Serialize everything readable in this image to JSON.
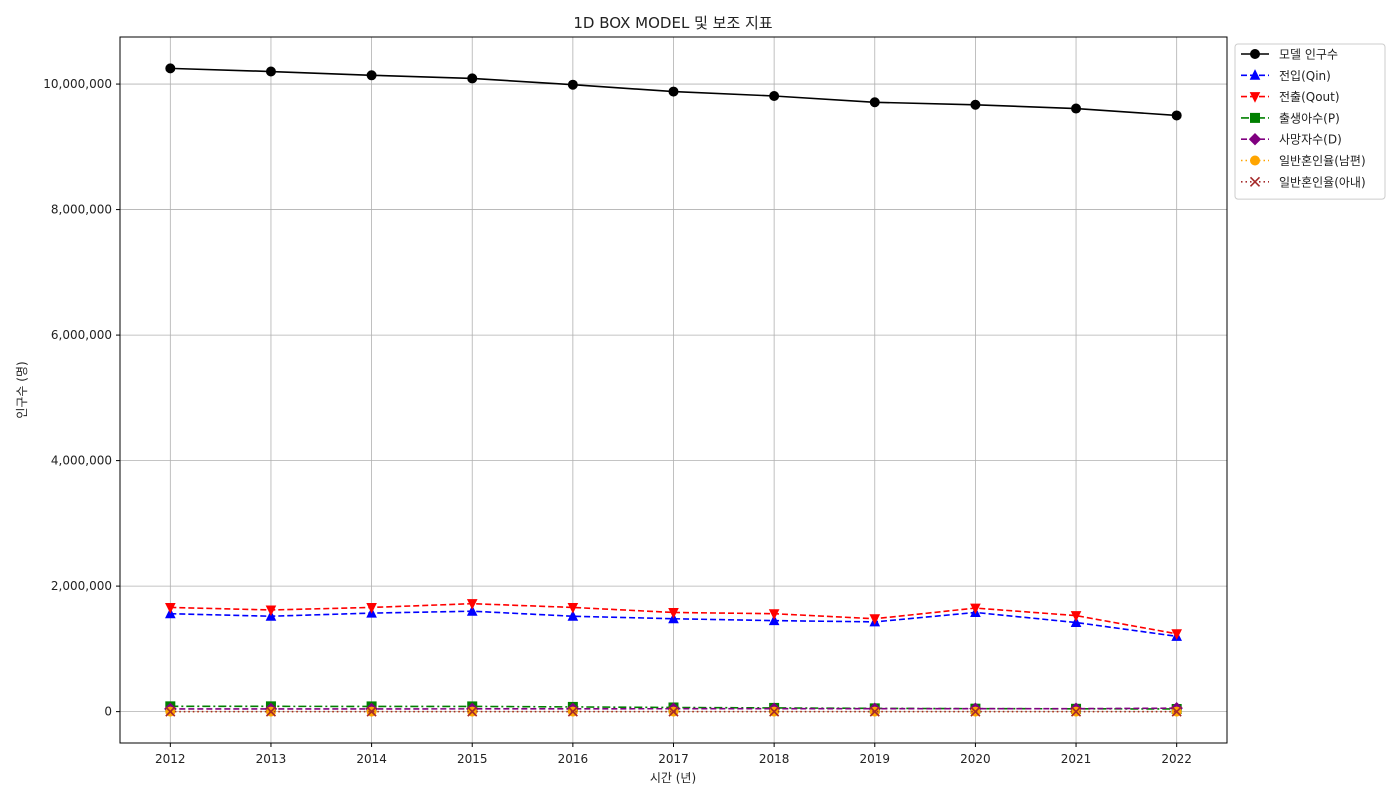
{
  "chart_data": {
    "type": "line",
    "title": "1D BOX MODEL 및 보조 지표",
    "xlabel": "시간 (년)",
    "ylabel": "인구수 (명)",
    "x": [
      2012,
      2013,
      2014,
      2015,
      2016,
      2017,
      2018,
      2019,
      2020,
      2021,
      2022
    ],
    "ylim": [
      -500000,
      10750000
    ],
    "yticks": [
      0,
      2000000,
      4000000,
      6000000,
      8000000,
      10000000
    ],
    "ytick_labels": [
      "0",
      "2,000,000",
      "4,000,000",
      "6,000,000",
      "8,000,000",
      "10,000,000"
    ],
    "grid": true,
    "legend_position": "outside-top-right",
    "series": [
      {
        "name": "모델 인구수",
        "color": "#000000",
        "dash": "solid",
        "marker": "circle",
        "values": [
          10250000,
          10200000,
          10140000,
          10090000,
          9990000,
          9880000,
          9810000,
          9710000,
          9670000,
          9610000,
          9500000
        ]
      },
      {
        "name": "전입(Qin)",
        "color": "#0000ff",
        "dash": "dashed",
        "marker": "triangle-up",
        "values": [
          1560000,
          1520000,
          1570000,
          1600000,
          1520000,
          1480000,
          1450000,
          1430000,
          1580000,
          1420000,
          1200000
        ]
      },
      {
        "name": "전출(Qout)",
        "color": "#ff0000",
        "dash": "dashed",
        "marker": "triangle-down",
        "values": [
          1660000,
          1620000,
          1660000,
          1720000,
          1660000,
          1580000,
          1560000,
          1480000,
          1650000,
          1530000,
          1240000
        ]
      },
      {
        "name": "출생아수(P)",
        "color": "#008000",
        "dash": "dashdot",
        "marker": "square",
        "values": [
          84000,
          84000,
          83000,
          83000,
          75000,
          66000,
          59000,
          52000,
          47000,
          45000,
          42000
        ]
      },
      {
        "name": "사망자수(D)",
        "color": "#800080",
        "dash": "dashed",
        "marker": "diamond",
        "values": [
          43000,
          43000,
          43000,
          44000,
          45000,
          46000,
          47000,
          46000,
          47000,
          47000,
          55000
        ]
      },
      {
        "name": "일반혼인율(남편)",
        "color": "#ffa500",
        "dash": "dotted",
        "marker": "circle",
        "values": [
          4,
          4,
          4,
          4,
          4,
          4,
          4,
          3,
          3,
          3,
          3
        ]
      },
      {
        "name": "일반혼인율(아내)",
        "color": "#a52a2a",
        "dash": "dotted",
        "marker": "x",
        "values": [
          4,
          4,
          4,
          4,
          4,
          4,
          4,
          3,
          3,
          3,
          3
        ]
      }
    ]
  }
}
